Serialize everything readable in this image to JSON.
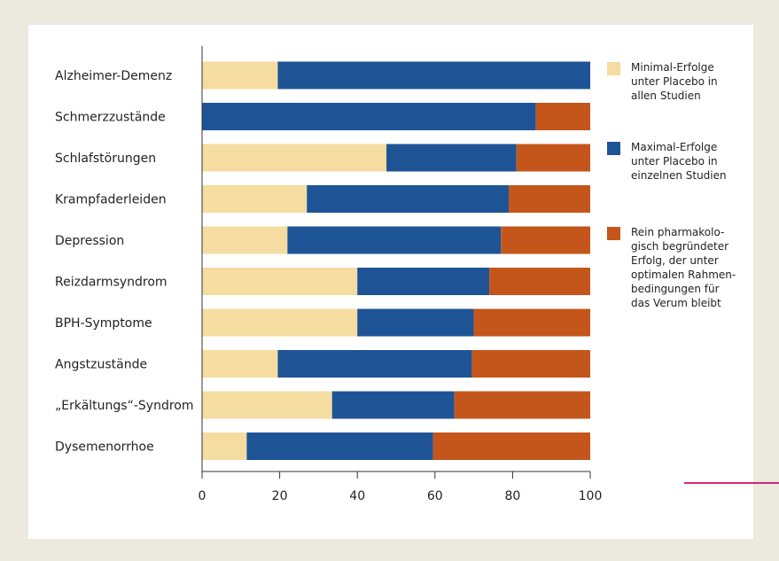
{
  "chart_data": {
    "type": "bar",
    "orientation": "horizontal",
    "stacked": true,
    "categories": [
      "Alzheimer-Demenz",
      "Schmerzzustände",
      "Schlafstörungen",
      "Krampfaderleiden",
      "Depression",
      "Reizdarmsyndrom",
      "BPH-Symptome",
      "Angstzustände",
      "„Erkältungs“-Syndrom",
      "Dysemenorrhoe"
    ],
    "series": [
      {
        "name": "Minimal-Erfolge unter Placebo in allen Studien",
        "legend_lines": [
          "Minimal-Erfolge",
          "unter Placebo in",
          "allen Studien"
        ],
        "color": "#f5dca0",
        "values": [
          19.5,
          0,
          47.5,
          27,
          22,
          40,
          40,
          19.5,
          33.5,
          11.5
        ]
      },
      {
        "name": "Maximal-Erfolge unter Placebo in einzelnen Studien",
        "legend_lines": [
          "Maximal-Erfolge",
          "unter Placebo in",
          "einzelnen Studien"
        ],
        "color": "#1e5496",
        "values": [
          80.5,
          86,
          33.5,
          52,
          55,
          34,
          30,
          50,
          31.5,
          48
        ]
      },
      {
        "name": "Rein pharmakologisch begründeter Erfolg, der unter optimalen Rahmenbedingungen für das Verum bleibt",
        "legend_lines": [
          "Rein pharmakolo-",
          "gisch begründeter",
          "Erfolg, der unter",
          "optimalen Rahmen-",
          "bedingungen für",
          "das Verum bleibt"
        ],
        "color": "#c4561b",
        "values": [
          0,
          14,
          19,
          21,
          23,
          26,
          30,
          30.5,
          35,
          40.5
        ]
      }
    ],
    "xlim": [
      0,
      100
    ],
    "xticks": [
      0,
      20,
      40,
      60,
      80,
      100
    ],
    "title": "",
    "xlabel": "",
    "ylabel": "",
    "grid": false,
    "legend_position": "right"
  },
  "colors": {
    "background": "#ece9df",
    "panel": "#ffffff",
    "axis": "#333333",
    "accent_line": "#d4267a"
  }
}
